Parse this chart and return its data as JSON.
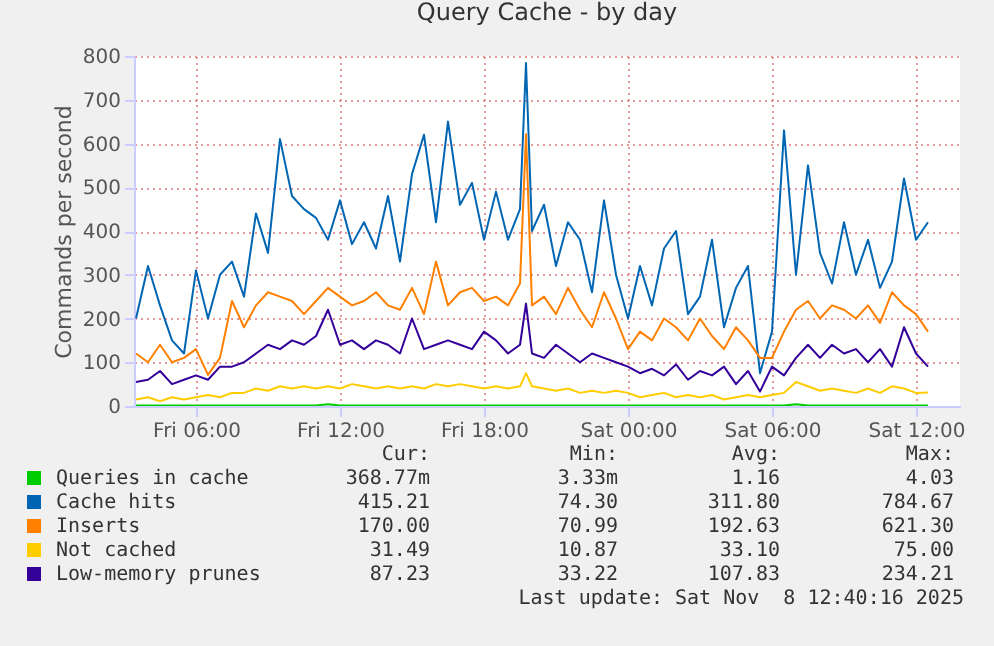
{
  "chart_data": {
    "type": "line",
    "title": "Query Cache - by day",
    "ylabel": "Commands per second",
    "x": [
      "2025-11-07T03:30",
      "2025-11-07T04:00",
      "2025-11-07T04:30",
      "2025-11-07T05:00",
      "2025-11-07T05:30",
      "2025-11-07T06:00",
      "2025-11-07T06:30",
      "2025-11-07T07:00",
      "2025-11-07T07:30",
      "2025-11-07T08:00",
      "2025-11-07T08:30",
      "2025-11-07T09:00",
      "2025-11-07T09:30",
      "2025-11-07T10:00",
      "2025-11-07T10:30",
      "2025-11-07T11:00",
      "2025-11-07T11:30",
      "2025-11-07T12:00",
      "2025-11-07T12:30",
      "2025-11-07T13:00",
      "2025-11-07T13:30",
      "2025-11-07T14:00",
      "2025-11-07T14:30",
      "2025-11-07T15:00",
      "2025-11-07T15:30",
      "2025-11-07T16:00",
      "2025-11-07T16:30",
      "2025-11-07T17:00",
      "2025-11-07T17:30",
      "2025-11-07T18:00",
      "2025-11-07T18:30",
      "2025-11-07T19:00",
      "2025-11-07T19:30",
      "2025-11-07T19:45",
      "2025-11-07T20:00",
      "2025-11-07T20:30",
      "2025-11-07T21:00",
      "2025-11-07T21:30",
      "2025-11-07T22:00",
      "2025-11-07T22:30",
      "2025-11-07T23:00",
      "2025-11-07T23:30",
      "2025-11-08T00:00",
      "2025-11-08T00:30",
      "2025-11-08T01:00",
      "2025-11-08T01:30",
      "2025-11-08T02:00",
      "2025-11-08T02:30",
      "2025-11-08T03:00",
      "2025-11-08T03:30",
      "2025-11-08T04:00",
      "2025-11-08T04:30",
      "2025-11-08T05:00",
      "2025-11-08T05:30",
      "2025-11-08T06:00",
      "2025-11-08T06:30",
      "2025-11-08T07:00",
      "2025-11-08T07:30",
      "2025-11-08T08:00",
      "2025-11-08T08:30",
      "2025-11-08T09:00",
      "2025-11-08T09:30",
      "2025-11-08T10:00",
      "2025-11-08T10:30",
      "2025-11-08T11:00",
      "2025-11-08T11:30",
      "2025-11-08T12:00",
      "2025-11-08T12:30"
    ],
    "series": [
      {
        "name": "Queries in cache",
        "color": "#00cc00",
        "values": [
          1,
          1,
          1,
          1,
          1,
          1,
          1,
          1,
          1,
          1,
          1,
          1,
          1,
          1,
          1,
          1,
          4,
          1,
          1,
          1,
          1,
          1,
          1,
          1,
          1,
          1,
          1,
          1,
          1,
          1,
          1,
          1,
          1,
          1,
          1,
          1,
          1,
          1,
          1,
          1,
          1,
          1,
          1,
          1,
          1,
          1,
          1,
          1,
          1,
          1,
          1,
          1,
          1,
          1,
          1,
          1,
          4,
          1,
          1,
          1,
          1,
          1,
          1,
          1,
          1,
          1,
          1,
          1
        ]
      },
      {
        "name": "Cache hits",
        "color": "#0066b3",
        "values": [
          200,
          320,
          230,
          150,
          120,
          310,
          200,
          300,
          330,
          250,
          440,
          350,
          610,
          480,
          450,
          430,
          380,
          470,
          370,
          420,
          360,
          480,
          330,
          530,
          620,
          420,
          650,
          460,
          510,
          380,
          490,
          380,
          450,
          784,
          400,
          460,
          320,
          420,
          380,
          260,
          470,
          300,
          200,
          320,
          230,
          360,
          400,
          210,
          250,
          380,
          180,
          270,
          320,
          75,
          170,
          630,
          300,
          550,
          350,
          280,
          420,
          300,
          380,
          270,
          330,
          520,
          380,
          420
        ]
      },
      {
        "name": "Inserts",
        "color": "#ff8000",
        "values": [
          120,
          100,
          140,
          100,
          110,
          130,
          71,
          110,
          240,
          180,
          230,
          260,
          250,
          240,
          210,
          240,
          270,
          250,
          230,
          240,
          260,
          230,
          220,
          270,
          210,
          330,
          230,
          260,
          270,
          240,
          250,
          230,
          280,
          621,
          230,
          250,
          210,
          270,
          220,
          180,
          260,
          200,
          130,
          170,
          150,
          200,
          180,
          150,
          200,
          160,
          130,
          180,
          150,
          110,
          110,
          170,
          220,
          240,
          200,
          230,
          220,
          200,
          230,
          190,
          260,
          230,
          210,
          170
        ]
      },
      {
        "name": "Not cached",
        "color": "#ffcc00",
        "values": [
          15,
          20,
          11,
          20,
          15,
          20,
          25,
          20,
          30,
          30,
          40,
          35,
          45,
          40,
          45,
          40,
          45,
          40,
          50,
          45,
          40,
          45,
          40,
          45,
          40,
          50,
          45,
          50,
          45,
          40,
          45,
          40,
          45,
          75,
          45,
          40,
          35,
          40,
          30,
          35,
          30,
          35,
          30,
          20,
          25,
          30,
          20,
          25,
          20,
          25,
          15,
          20,
          25,
          20,
          25,
          30,
          55,
          45,
          35,
          40,
          35,
          30,
          40,
          30,
          45,
          40,
          30,
          31
        ]
      },
      {
        "name": "Low-memory prunes",
        "color": "#330099",
        "values": [
          55,
          60,
          80,
          50,
          60,
          70,
          60,
          90,
          90,
          100,
          120,
          140,
          130,
          150,
          140,
          160,
          220,
          140,
          150,
          130,
          150,
          140,
          120,
          200,
          130,
          140,
          150,
          140,
          130,
          170,
          150,
          120,
          140,
          234,
          120,
          110,
          140,
          120,
          100,
          120,
          110,
          100,
          90,
          75,
          85,
          70,
          95,
          60,
          80,
          70,
          90,
          50,
          80,
          33,
          90,
          70,
          110,
          140,
          110,
          140,
          120,
          130,
          100,
          130,
          90,
          180,
          120,
          90
        ]
      }
    ],
    "xlim": [
      "2025-11-07T03:25",
      "2025-11-08T13:50"
    ],
    "xticks": [
      {
        "value": "2025-11-07T06:00",
        "label": "Fri 06:00"
      },
      {
        "value": "2025-11-07T12:00",
        "label": "Fri 12:00"
      },
      {
        "value": "2025-11-07T18:00",
        "label": "Fri 18:00"
      },
      {
        "value": "2025-11-08T00:00",
        "label": "Sat 00:00"
      },
      {
        "value": "2025-11-08T06:00",
        "label": "Sat 06:00"
      },
      {
        "value": "2025-11-08T12:00",
        "label": "Sat 12:00"
      }
    ],
    "ylim": [
      0,
      800
    ],
    "yticks": [
      0,
      100,
      200,
      300,
      400,
      500,
      600,
      700,
      800
    ],
    "grid": true,
    "legend": "bottom left",
    "annotations": [
      "Cur:",
      "Min:",
      "Avg:",
      "Max:",
      "368.77m",
      "3.33m",
      "1.16",
      "4.03",
      "415.21",
      "74.30",
      "311.80",
      "784.67",
      "170.00",
      "70.99",
      "192.63",
      "621.30",
      "31.49",
      "10.87",
      "33.10",
      "75.00",
      "87.23",
      "33.22",
      "107.83",
      "234.21",
      "Last update: Sat Nov  8 12:40:16 2025"
    ]
  }
}
